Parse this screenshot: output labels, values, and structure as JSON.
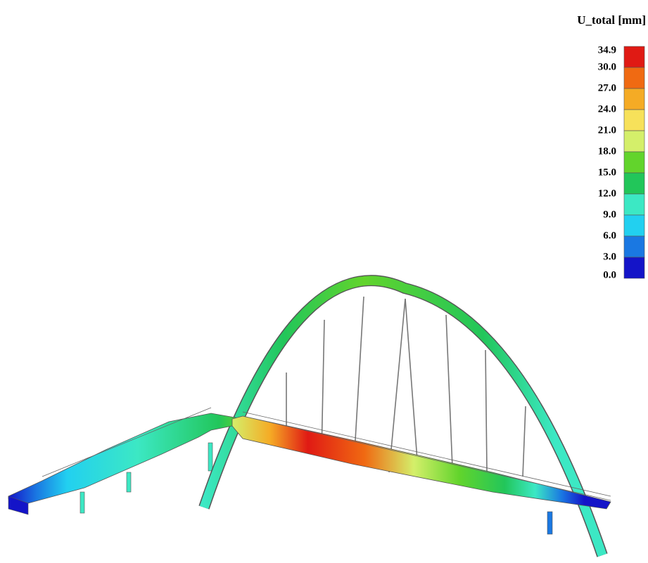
{
  "legend": {
    "title": "U_total [mm]",
    "levels": [
      {
        "value": 34.9,
        "label": "34.9"
      },
      {
        "value": 30,
        "label": "30.0"
      },
      {
        "value": 27,
        "label": "27.0"
      },
      {
        "value": 24,
        "label": "24.0"
      },
      {
        "value": 21,
        "label": "21.0"
      },
      {
        "value": 18,
        "label": "18.0"
      },
      {
        "value": 15,
        "label": "15.0"
      },
      {
        "value": 12,
        "label": "12.0"
      },
      {
        "value": 9,
        "label": "9.0"
      },
      {
        "value": 6,
        "label": "6.0"
      },
      {
        "value": 3,
        "label": "3.0"
      },
      {
        "value": 0,
        "label": "0.0"
      }
    ],
    "colors": [
      "#e01a14",
      "#f06a12",
      "#f5ab25",
      "#f7e15a",
      "#d4ef6a",
      "#62d42c",
      "#22c65a",
      "#3ce8c4",
      "#22d0f0",
      "#1a78e2",
      "#1414c8"
    ]
  }
}
